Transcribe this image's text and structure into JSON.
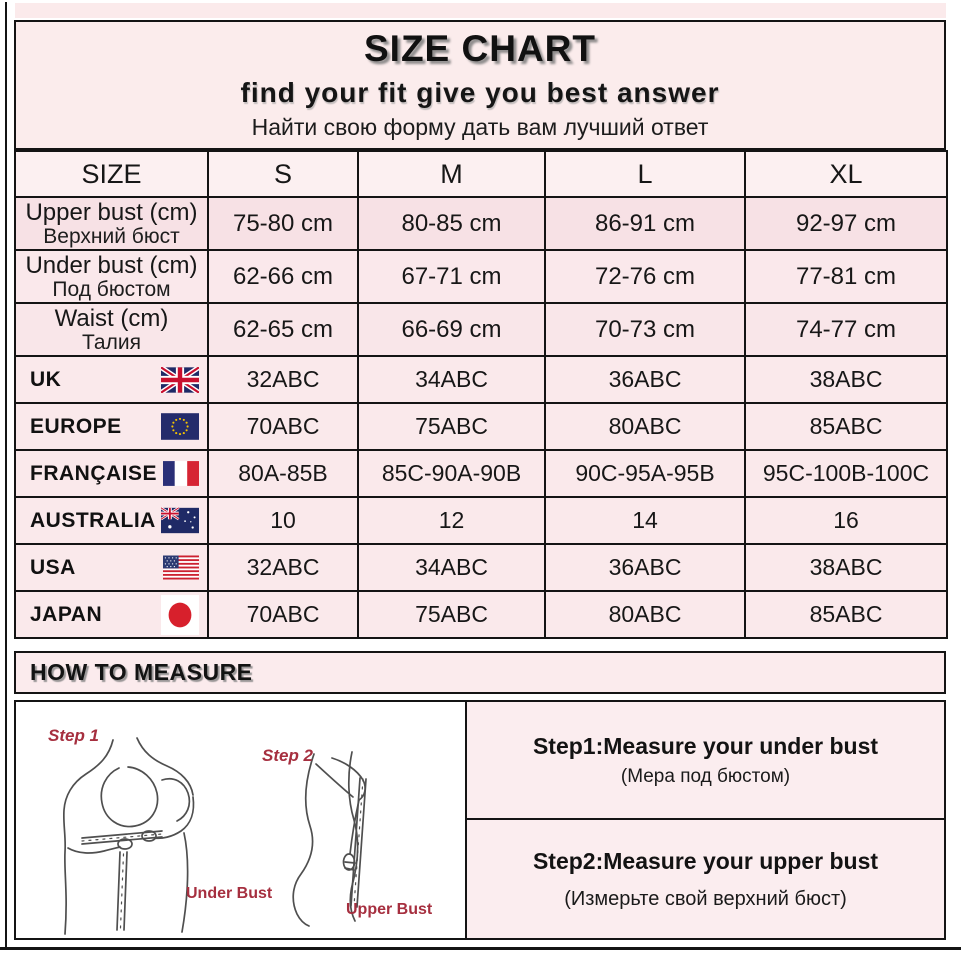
{
  "header": {
    "title": "SIZE CHART",
    "subtitle": "find your fit give you best answer",
    "subtitle_ru": "Найти свою форму дать вам лучший ответ"
  },
  "table": {
    "columns": [
      "SIZE",
      "S",
      "M",
      "L",
      "XL"
    ],
    "measurement_rows": [
      {
        "label_en": "Upper bust (cm)",
        "label_ru": "Верхний бюст",
        "values": [
          "75-80 cm",
          "80-85 cm",
          "86-91 cm",
          "92-97 cm"
        ]
      },
      {
        "label_en": "Under bust (cm)",
        "label_ru": "Под бюстом",
        "values": [
          "62-66 cm",
          "67-71 cm",
          "72-76 cm",
          "77-81 cm"
        ]
      },
      {
        "label_en": "Waist (cm)",
        "label_ru": "Талия",
        "values": [
          "62-65 cm",
          "66-69 cm",
          "70-73 cm",
          "74-77 cm"
        ]
      }
    ],
    "country_rows": [
      {
        "label": "UK",
        "flag": "uk-flag",
        "values": [
          "32ABC",
          "34ABC",
          "36ABC",
          "38ABC"
        ]
      },
      {
        "label": "EUROPE",
        "flag": "eu-flag",
        "values": [
          "70ABC",
          "75ABC",
          "80ABC",
          "85ABC"
        ]
      },
      {
        "label": "FRANÇAISE",
        "flag": "france-flag",
        "values": [
          "80A-85B",
          "85C-90A-90B",
          "90C-95A-95B",
          "95C-100B-100C"
        ]
      },
      {
        "label": "AUSTRALIA",
        "flag": "australia-flag",
        "values": [
          "10",
          "12",
          "14",
          "16"
        ]
      },
      {
        "label": "USA",
        "flag": "usa-flag",
        "values": [
          "32ABC",
          "34ABC",
          "36ABC",
          "38ABC"
        ]
      },
      {
        "label": "JAPAN",
        "flag": "japan-flag",
        "values": [
          "70ABC",
          "75ABC",
          "80ABC",
          "85ABC"
        ]
      }
    ]
  },
  "how_to_measure": {
    "title": "HOW TO MEASURE",
    "illustration": {
      "step1_label": "Step 1",
      "step2_label": "Step 2",
      "under_bust_label": "Under Bust",
      "upper_bust_label": "Upper Bust"
    },
    "steps": [
      {
        "title": "Step1:Measure your under bust",
        "subtitle": "(Мера под бюстом)"
      },
      {
        "title": "Step2:Measure your upper bust",
        "subtitle": "(Измерьте свой верхний бюст)"
      }
    ]
  },
  "colors": {
    "header_pink": "#fbecec",
    "row_pink_dark": "#f7e1e5",
    "row_pink_light": "#fae9eb",
    "step_box_pink": "#fbedef",
    "border_black": "#141414",
    "label_red": "#a62f3f"
  }
}
